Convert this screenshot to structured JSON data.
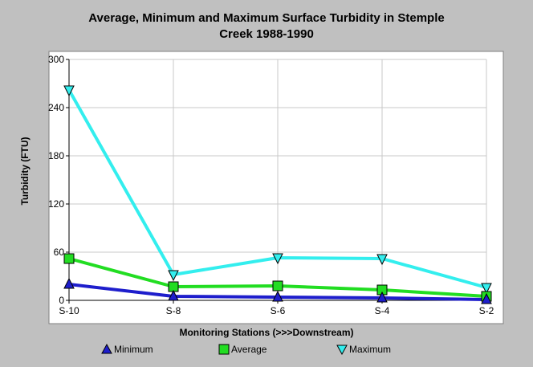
{
  "chart_data": {
    "type": "line",
    "title_line1": "Average, Minimum and Maximum Surface Turbidity in Stemple",
    "title_line2": "Creek 1988-1990",
    "xlabel": "Monitoring Stations (>>>Downstream)",
    "ylabel": "Turbidity (FTU)",
    "categories": [
      "S-10",
      "S-8",
      "S-6",
      "S-4",
      "S-2"
    ],
    "ylim": [
      0,
      300
    ],
    "yticks": [
      0,
      60,
      120,
      180,
      240,
      300
    ],
    "grid": true,
    "legend_position": "bottom",
    "series": [
      {
        "name": "Minimum",
        "values": [
          20,
          5,
          4,
          3,
          1
        ],
        "color": "#1e1ecc",
        "marker": "triangle-up"
      },
      {
        "name": "Average",
        "values": [
          52,
          17,
          18,
          13,
          5
        ],
        "color": "#22dd22",
        "marker": "square"
      },
      {
        "name": "Maximum",
        "values": [
          262,
          32,
          53,
          52,
          16
        ],
        "color": "#33eeee",
        "marker": "triangle-down"
      }
    ]
  },
  "colors": {
    "background": "#c0c0c0",
    "plot_area": "#ffffff"
  }
}
